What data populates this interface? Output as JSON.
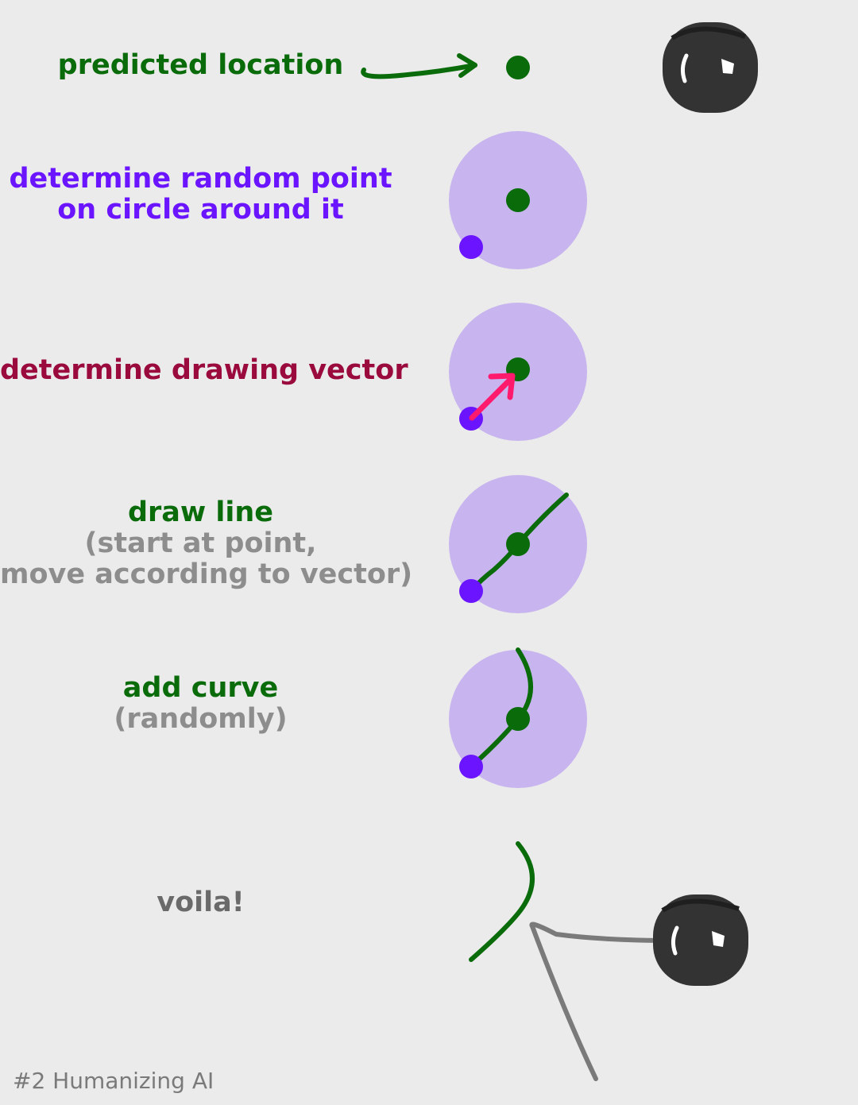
{
  "steps": [
    {
      "title": "predicted location"
    },
    {
      "title_line1": "determine random point",
      "title_line2": "on circle around it"
    },
    {
      "title": "determine drawing vector"
    },
    {
      "title": "draw line",
      "subtitle_line1": "(start at point,",
      "subtitle_line2": "move according to vector)"
    },
    {
      "title": "add curve",
      "subtitle": "(randomly)"
    },
    {
      "title": "voila!"
    }
  ],
  "footer": "#2 Humanizing AI",
  "colors": {
    "background": "#ebebeb",
    "predicted_point": "#0a6b0a",
    "random_point": "#6a14ff",
    "vector_arrow": "#ff1a6e",
    "circle_fill": "#c8b4ee",
    "stroke_line": "#0a6b0a",
    "eye": "#333333",
    "pointer_line": "#7a7a7a"
  }
}
